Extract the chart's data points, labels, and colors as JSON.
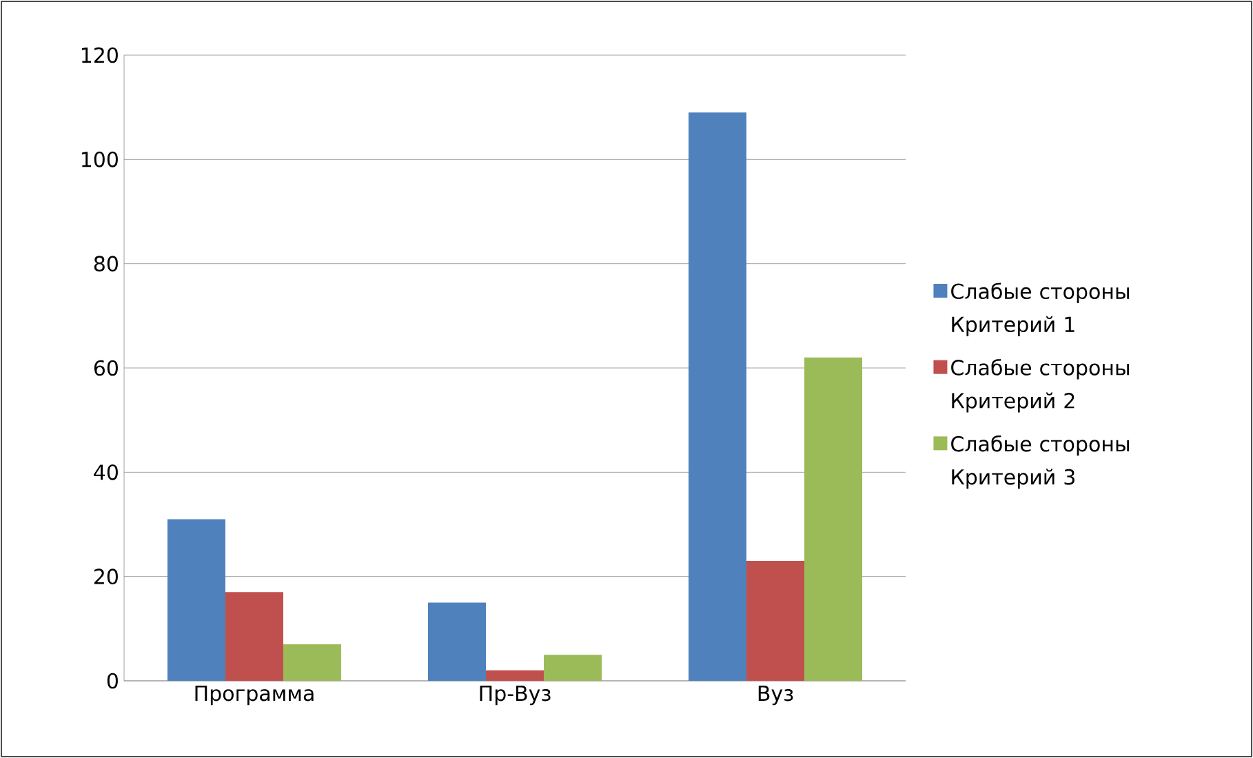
{
  "chart_data": {
    "type": "bar",
    "categories": [
      "Программа",
      "Пр-Вуз",
      "Вуз"
    ],
    "series": [
      {
        "name": "Слабые стороны Критерий 1",
        "color": "#4f81bd",
        "values": [
          31,
          15,
          109
        ]
      },
      {
        "name": "Слабые стороны Критерий 2",
        "color": "#c0504d",
        "values": [
          17,
          2,
          23
        ]
      },
      {
        "name": "Слабые стороны Критерий 3",
        "color": "#9bbb59",
        "values": [
          7,
          5,
          62
        ]
      }
    ],
    "ylim": [
      0,
      120
    ],
    "yticks": [
      0,
      20,
      40,
      60,
      80,
      100,
      120
    ],
    "grid": "y",
    "legend": "right"
  }
}
